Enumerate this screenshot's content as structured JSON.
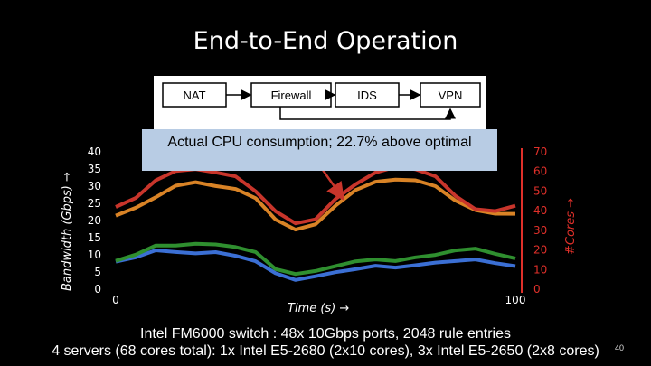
{
  "slide": {
    "title": "End-to-End Operation",
    "page_number": "40",
    "footer_line1": "Intel FM6000 switch : 48x 10Gbps ports, 2048 rule entries",
    "footer_line2": "4 servers  (68 cores total): 1x Intel E5-2680 (2x10 cores), 3x Intel E5-2650 (2x8 cores)"
  },
  "pipeline": {
    "stages": [
      "NAT",
      "Firewall",
      "IDS",
      "VPN"
    ]
  },
  "callout": {
    "text": "Actual CPU consumption; 22.7% above optimal"
  },
  "chart_data": {
    "type": "line",
    "title": "",
    "xlabel": "Time (s) →",
    "ylabel_left": "Bandwidth (Gbps) →",
    "ylabel_right": "#Cores →",
    "xlim": [
      0,
      100
    ],
    "x_ticks": [
      "0",
      "100"
    ],
    "y_left_lim": [
      0,
      40
    ],
    "y_left_ticks": [
      "0",
      "5",
      "10",
      "15",
      "20",
      "25",
      "30",
      "35",
      "40"
    ],
    "y_right_lim": [
      0,
      70
    ],
    "y_right_ticks": [
      "0",
      "10",
      "20",
      "30",
      "40",
      "50",
      "60",
      "70"
    ],
    "colors": {
      "blue": "#3b6fd4",
      "green": "#2f8f2f",
      "orange": "#d98326",
      "red": "#c8352b",
      "right_axis": "#e0302a"
    },
    "series": [
      {
        "color_key": "blue",
        "axis": "left",
        "x": [
          0,
          5,
          10,
          15,
          20,
          25,
          30,
          35,
          40,
          45,
          50,
          55,
          60,
          65,
          70,
          75,
          80,
          85,
          90,
          95,
          100
        ],
        "values": [
          8,
          9.5,
          11,
          11,
          10.5,
          10.5,
          10,
          8,
          4.5,
          3,
          3.5,
          5,
          6,
          6.5,
          6.5,
          7,
          7.5,
          8.5,
          8.5,
          7.5,
          7
        ]
      },
      {
        "color_key": "green",
        "axis": "left",
        "x": [
          0,
          5,
          10,
          15,
          20,
          25,
          30,
          35,
          40,
          45,
          50,
          55,
          60,
          65,
          70,
          75,
          80,
          85,
          90,
          95,
          100
        ],
        "values": [
          8.5,
          10,
          12.5,
          13,
          13,
          13,
          12.5,
          10.5,
          6,
          4.5,
          5,
          7,
          8,
          8.5,
          8.5,
          9,
          10,
          11.5,
          11.5,
          10.5,
          9
        ]
      },
      {
        "color_key": "orange",
        "axis": "right",
        "x": [
          0,
          5,
          10,
          15,
          20,
          25,
          30,
          35,
          40,
          45,
          50,
          55,
          60,
          65,
          70,
          75,
          80,
          85,
          90,
          95,
          100
        ],
        "values": [
          38,
          41,
          47,
          53,
          54,
          53,
          51,
          46,
          36,
          30,
          33,
          43,
          50,
          55,
          56,
          55,
          53,
          45,
          40,
          39,
          38
        ]
      },
      {
        "color_key": "red",
        "axis": "right",
        "x": [
          0,
          5,
          10,
          15,
          20,
          25,
          30,
          35,
          40,
          45,
          50,
          55,
          60,
          65,
          70,
          75,
          80,
          85,
          90,
          95,
          100
        ],
        "values": [
          42,
          46,
          56,
          60,
          61,
          60,
          57,
          50,
          40,
          33,
          36,
          46,
          53,
          60,
          62,
          61,
          58,
          47,
          41,
          40,
          42
        ]
      }
    ]
  }
}
